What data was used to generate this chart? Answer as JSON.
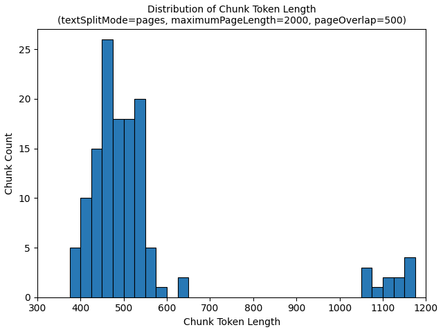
{
  "title_line1": "Distribution of Chunk Token Length",
  "title_line2": "(textSplitMode=pages, maximumPageLength=2000, pageOverlap=500)",
  "xlabel": "Chunk Token Length",
  "ylabel": "Chunk Count",
  "bar_color": "#2878b5",
  "edge_color": "#000000",
  "xlim": [
    300,
    1200
  ],
  "ylim": [
    0,
    27
  ],
  "xticks": [
    300,
    400,
    500,
    600,
    700,
    800,
    900,
    1000,
    1100,
    1200
  ],
  "yticks": [
    0,
    5,
    10,
    15,
    20,
    25
  ],
  "bin_edges": [
    375,
    400,
    425,
    450,
    475,
    500,
    525,
    550,
    575,
    600,
    625,
    650,
    1050,
    1075,
    1100,
    1125,
    1150,
    1175,
    1200
  ],
  "counts": [
    5,
    10,
    15,
    26,
    18,
    18,
    20,
    5,
    1,
    0,
    2,
    0,
    3,
    1,
    2,
    2,
    4,
    0
  ]
}
